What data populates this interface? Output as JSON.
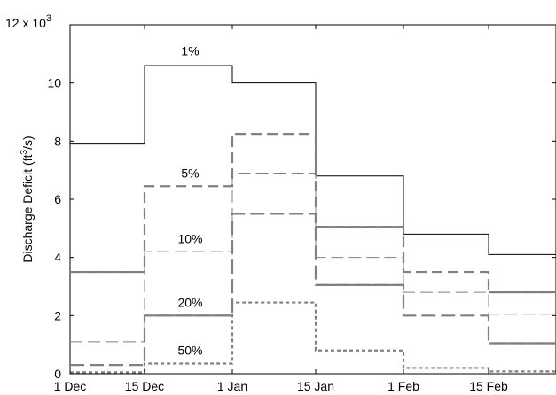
{
  "chart_data": {
    "type": "line",
    "step": true,
    "title": "",
    "xlabel": "",
    "ylabel": "Discharge Deficit (ft³/s)",
    "ylabel_parts": {
      "pre": "Discharge Deficit (ft",
      "sup": "3",
      "post": "/s)"
    },
    "y_multiplier": {
      "base": "12 x 10",
      "exp": "3"
    },
    "ylim": [
      0,
      12000
    ],
    "yticks": [
      0,
      2000,
      4000,
      6000,
      8000,
      10000
    ],
    "ytick_labels": [
      "0",
      "2",
      "4",
      "6",
      "8",
      "10"
    ],
    "xlim": [
      "1 Dec",
      "end Feb"
    ],
    "xticks": [
      "1 Dec",
      "15 Dec",
      "1 Jan",
      "15 Jan",
      "1 Feb",
      "15 Feb"
    ],
    "grid": false,
    "legend": "none",
    "periods": [
      "1 Dec",
      "15 Dec",
      "1 Jan",
      "15 Jan",
      "1 Feb",
      "15 Feb"
    ],
    "series": [
      {
        "label": "1%",
        "values": [
          7900,
          10600,
          10000,
          6800,
          4800,
          4100
        ],
        "color": "#000000",
        "width": 1.0,
        "dash": ""
      },
      {
        "label": "5%",
        "values": [
          3500,
          6450,
          8250,
          5050,
          3500,
          2800
        ],
        "color": "#808080",
        "width": 2.2,
        "dash": "12,6"
      },
      {
        "label": "10%",
        "values": [
          1100,
          4200,
          6900,
          4000,
          2800,
          2050
        ],
        "color": "#808080",
        "width": 1.0,
        "dash": "14,6"
      },
      {
        "label": "20%",
        "values": [
          300,
          2000,
          5500,
          3050,
          2000,
          1050
        ],
        "color": "#808080",
        "width": 2.2,
        "dash": "16,6"
      },
      {
        "label": "50%",
        "values": [
          50,
          350,
          2450,
          800,
          200,
          80
        ],
        "color": "#808080",
        "width": 2.2,
        "dash": "4,3"
      }
    ],
    "solid_overlay": [
      {
        "label": "5%",
        "values": [
          3500,
          6450,
          8250,
          5050,
          3500,
          2800
        ],
        "segments": [
          0,
          3,
          5
        ]
      },
      {
        "label": "20%",
        "values": [
          300,
          2000,
          5500,
          3050,
          2000,
          1050
        ],
        "segments": [
          1,
          3,
          5
        ]
      }
    ],
    "annotations": [
      {
        "text": "1%",
        "x": "22 Dec",
        "y": 11100
      },
      {
        "text": "5%",
        "x": "22 Dec",
        "y": 6900
      },
      {
        "text": "10%",
        "x": "22 Dec",
        "y": 4650
      },
      {
        "text": "20%",
        "x": "22 Dec",
        "y": 2450
      },
      {
        "text": "50%",
        "x": "22 Dec",
        "y": 800
      }
    ]
  }
}
